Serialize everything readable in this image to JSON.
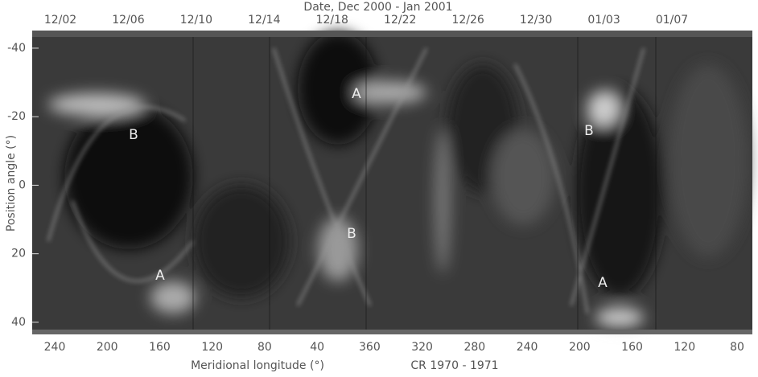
{
  "chart_data": {
    "type": "image",
    "title": "Date, Dec 2000 - Jan 2001",
    "x_label": "Meridional longitude (°)",
    "note": "CR 1970 - 1971",
    "y_label": "Position angle (°)",
    "top_categories": [
      "12/02",
      "12/06",
      "12/10",
      "12/14",
      "12/18",
      "12/22",
      "12/26",
      "12/30",
      "01/03",
      "01/07"
    ],
    "categories": [
      "240",
      "200",
      "160",
      "120",
      "80",
      "40",
      "360",
      "320",
      "280",
      "240",
      "200",
      "160",
      "120",
      "80"
    ],
    "ylim": [
      -43.5,
      42.6
    ],
    "y_inverted": true,
    "yticks": [
      -40,
      -20,
      0,
      20,
      40
    ],
    "annotations": [
      "B",
      "A",
      "A",
      "B",
      "B",
      "A"
    ]
  }
}
